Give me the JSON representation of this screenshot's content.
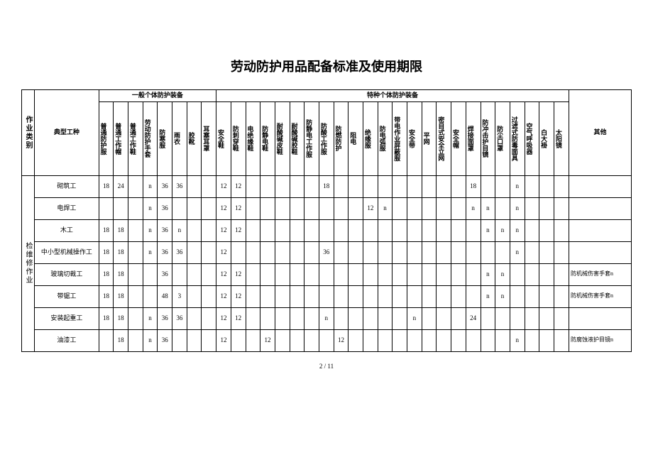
{
  "title": "劳动防护用品配备标准及使用期限",
  "group_headers": {
    "general": "一般个体防护装备",
    "special": "特种个体防护装备"
  },
  "row_headers": {
    "category": "作业类别",
    "job": "典型工种",
    "other": "其他"
  },
  "columns": [
    "普通防护服",
    "普通工作帽",
    "普通工作鞋",
    "劳动防护手套",
    "防寒服",
    "雨衣",
    "胶靴",
    "耳塞耳罩",
    "安全鞋",
    "防刺穿鞋",
    "电绝缘鞋",
    "防静电鞋",
    "耐酸碱皮鞋",
    "耐酸碱胶鞋",
    "防静电工作服",
    "防酸工作服",
    "防燃防护",
    "阻电",
    "绝缘服",
    "防电弧服",
    "带电作业屏蔽服",
    "安全带",
    "平网",
    "密目式安全立网",
    "安全帽",
    "焊接面罩",
    "防冲击护目镜",
    "防尘口罩",
    "过滤式防毒面具",
    "空气呼吸器",
    "白大褂",
    "太阳镜"
  ],
  "category": "检维修作业",
  "rows": [
    {
      "job": "砌筑工",
      "v": [
        "18",
        "24",
        "",
        "n",
        "36",
        "36",
        "",
        "",
        "12",
        "12",
        "",
        "",
        "",
        "",
        "",
        "18",
        "",
        "",
        "",
        "",
        "",
        "",
        "",
        "",
        "",
        "18",
        "",
        "",
        "n",
        "",
        "",
        ""
      ],
      "other": ""
    },
    {
      "job": "电焊工",
      "v": [
        "",
        "",
        "",
        "n",
        "36",
        "",
        "",
        "",
        "12",
        "12",
        "",
        "",
        "",
        "",
        "",
        "",
        "",
        "",
        "12",
        "n",
        "",
        "",
        "",
        "",
        "",
        "n",
        "n",
        "",
        "n",
        "",
        "",
        ""
      ],
      "other": ""
    },
    {
      "job": "木工",
      "v": [
        "18",
        "18",
        "",
        "n",
        "36",
        "n",
        "",
        "",
        "12",
        "12",
        "",
        "",
        "",
        "",
        "",
        "",
        "",
        "",
        "",
        "",
        "",
        "",
        "",
        "",
        "",
        "",
        "n",
        "n",
        "n",
        "",
        "",
        ""
      ],
      "other": ""
    },
    {
      "job": "中小型机械操作工",
      "v": [
        "18",
        "18",
        "",
        "n",
        "36",
        "36",
        "",
        "",
        "12",
        "",
        "",
        "",
        "",
        "",
        "",
        "36",
        "",
        "",
        "",
        "",
        "",
        "",
        "",
        "",
        "",
        "",
        "",
        "",
        "n",
        "",
        "",
        ""
      ],
      "other": ""
    },
    {
      "job": "玻璃切裁工",
      "v": [
        "18",
        "18",
        "",
        "",
        "36",
        "",
        "",
        "",
        "12",
        "12",
        "",
        "",
        "",
        "",
        "",
        "",
        "",
        "",
        "",
        "",
        "",
        "",
        "",
        "",
        "",
        "",
        "n",
        "n",
        "",
        "",
        "",
        ""
      ],
      "other": "防机械伤害手套n"
    },
    {
      "job": "带锯工",
      "v": [
        "18",
        "18",
        "",
        "",
        "48",
        "3",
        "",
        "",
        "12",
        "12",
        "",
        "",
        "",
        "",
        "",
        "",
        "",
        "",
        "",
        "",
        "",
        "",
        "",
        "",
        "",
        "",
        "n",
        "n",
        "",
        "",
        "",
        ""
      ],
      "other": "防机械伤害手套n"
    },
    {
      "job": "安装起重工",
      "v": [
        "18",
        "18",
        "",
        "n",
        "36",
        "36",
        "",
        "",
        "12",
        "12",
        "",
        "",
        "",
        "",
        "",
        "n",
        "",
        "",
        "",
        "",
        "",
        "n",
        "",
        "",
        "",
        "24",
        "",
        "",
        "",
        "",
        "",
        ""
      ],
      "other": ""
    },
    {
      "job": "油漆工",
      "v": [
        "",
        "18",
        "",
        "n",
        "36",
        "",
        "",
        "",
        "12",
        "",
        "",
        "12",
        "",
        "",
        "",
        "",
        "12",
        "",
        "",
        "",
        "",
        "",
        "",
        "",
        "",
        "",
        "",
        "",
        "n",
        "",
        "",
        ""
      ],
      "other": "防腐蚀液护目镜n"
    }
  ],
  "page": "2 / 11"
}
